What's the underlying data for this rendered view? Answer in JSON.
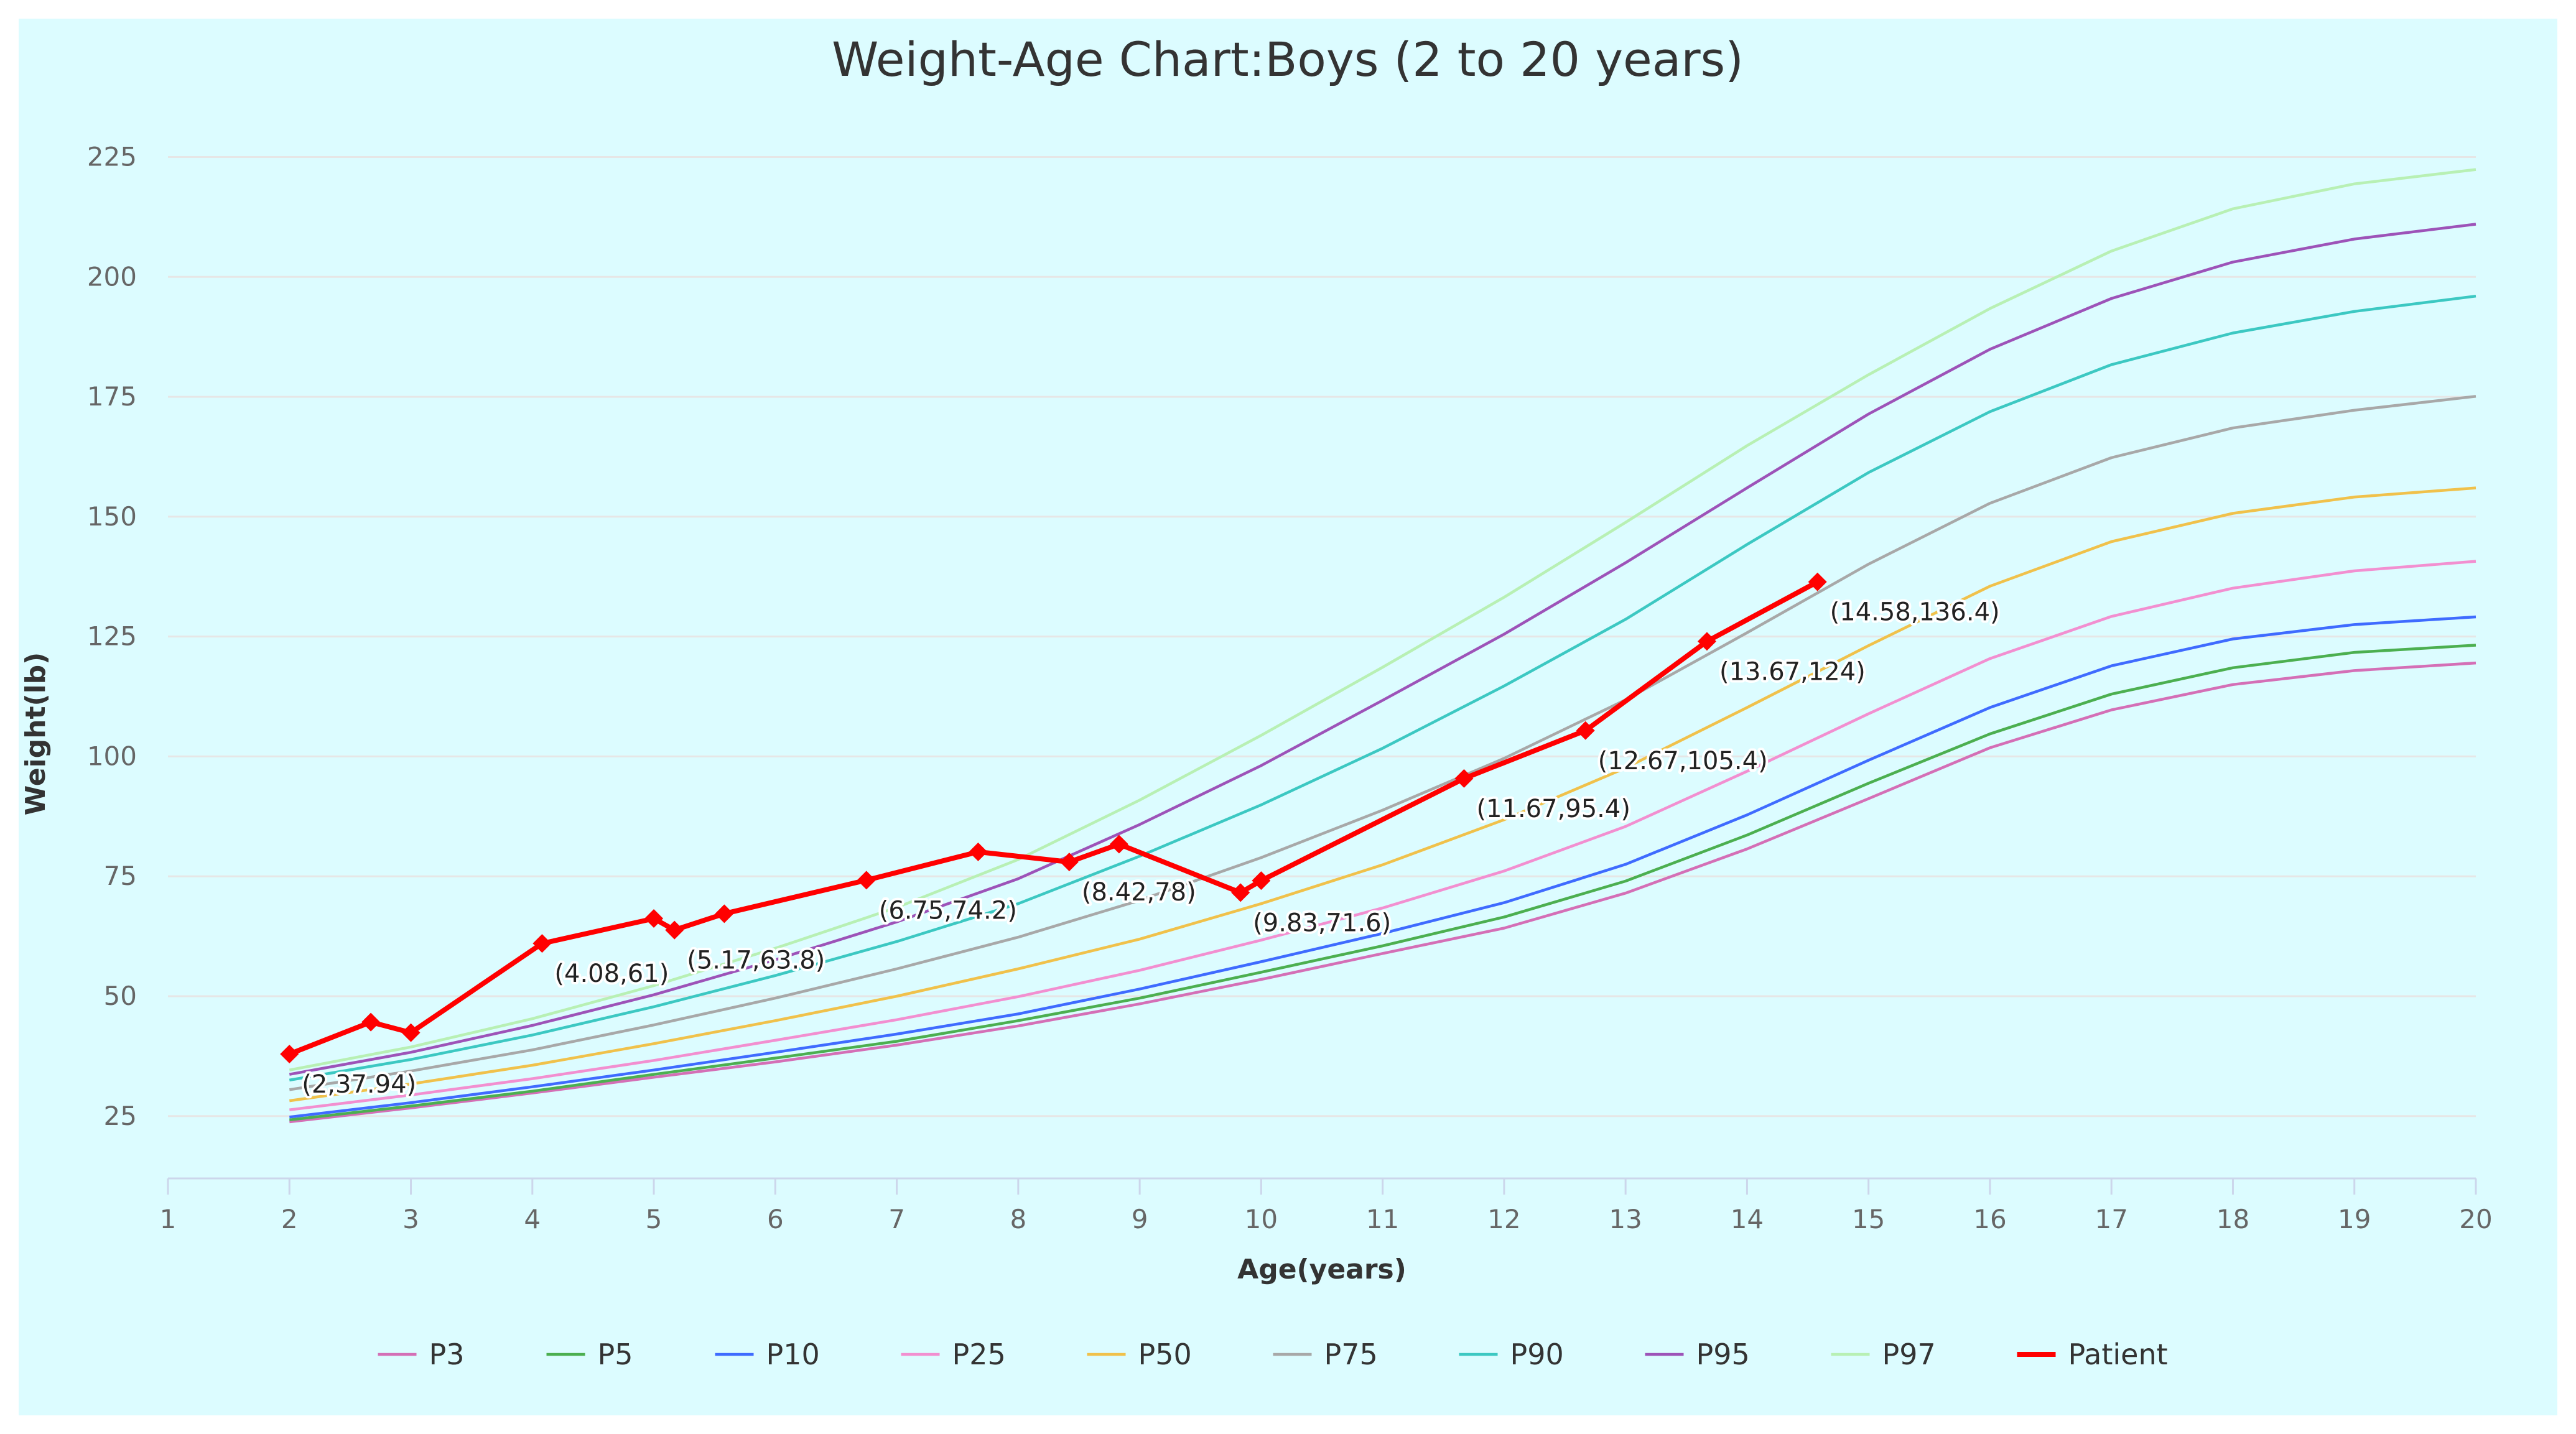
{
  "chart_data": {
    "type": "line",
    "title": "Weight-Age Chart:Boys (2 to 20 years)",
    "xlabel": "Age(years)",
    "ylabel": "Weight(lb)",
    "xlim": [
      1,
      20
    ],
    "ylim": [
      12,
      237
    ],
    "x_ticks": [
      1,
      2,
      3,
      4,
      5,
      6,
      7,
      8,
      9,
      10,
      11,
      12,
      13,
      14,
      15,
      16,
      17,
      18,
      19,
      20
    ],
    "y_ticks": [
      25,
      50,
      75,
      100,
      125,
      150,
      175,
      200,
      225
    ],
    "grid": "horizontal",
    "legend_position": "bottom",
    "x": [
      2,
      3,
      4,
      5,
      6,
      7,
      8,
      9,
      10,
      11,
      12,
      13,
      14,
      15,
      16,
      17,
      18,
      19,
      20
    ],
    "series": [
      {
        "name": "P3",
        "color": "#d46fb6",
        "values": [
          23.8,
          26.7,
          29.8,
          33.1,
          36.3,
          39.8,
          43.8,
          48.4,
          53.5,
          58.9,
          64.2,
          71.5,
          80.7,
          91.2,
          101.8,
          109.7,
          115.0,
          117.9,
          119.5
        ]
      },
      {
        "name": "P5",
        "color": "#4caf50",
        "values": [
          24.2,
          27.1,
          30.2,
          33.7,
          37.1,
          40.6,
          44.9,
          49.6,
          55.0,
          60.5,
          66.5,
          74.0,
          83.6,
          94.4,
          104.7,
          113.0,
          118.5,
          121.7,
          123.2
        ]
      },
      {
        "name": "P10",
        "color": "#3f6bff",
        "values": [
          24.8,
          27.8,
          31.1,
          34.6,
          38.3,
          42.1,
          46.3,
          51.5,
          57.2,
          63.1,
          69.5,
          77.5,
          87.8,
          99.2,
          110.2,
          118.9,
          124.5,
          127.5,
          129.1
        ]
      },
      {
        "name": "P25",
        "color": "#f28fd0",
        "values": [
          26.3,
          29.4,
          32.8,
          36.6,
          40.8,
          45.1,
          49.9,
          55.4,
          61.7,
          68.4,
          76.1,
          85.4,
          96.9,
          108.9,
          120.4,
          129.2,
          135.1,
          138.7,
          140.7
        ]
      },
      {
        "name": "P50",
        "color": "#f0c14b",
        "values": [
          28.2,
          31.7,
          35.6,
          40.1,
          44.9,
          50.0,
          55.7,
          61.9,
          69.3,
          77.4,
          86.8,
          97.6,
          110.2,
          123.1,
          135.5,
          144.8,
          150.7,
          154.1,
          156.0
        ]
      },
      {
        "name": "P75",
        "color": "#a8a8a8",
        "values": [
          30.5,
          34.4,
          38.8,
          44.0,
          49.6,
          55.7,
          62.3,
          70.0,
          78.9,
          88.8,
          99.6,
          111.8,
          125.8,
          140.1,
          152.8,
          162.3,
          168.5,
          172.2,
          175.1
        ]
      },
      {
        "name": "P90",
        "color": "#3cc8c2",
        "values": [
          32.5,
          36.8,
          41.9,
          47.8,
          54.3,
          61.4,
          69.3,
          79.2,
          89.9,
          101.7,
          114.7,
          128.6,
          144.2,
          159.2,
          171.9,
          181.7,
          188.3,
          192.8,
          196.0
        ]
      },
      {
        "name": "P95",
        "color": "#9d53b8",
        "values": [
          33.7,
          38.3,
          43.9,
          50.3,
          57.6,
          65.5,
          74.5,
          85.8,
          98.1,
          111.7,
          125.5,
          140.4,
          156.0,
          171.4,
          184.9,
          195.5,
          203.1,
          207.9,
          211.0
        ]
      },
      {
        "name": "P97",
        "color": "#b8f0b4",
        "values": [
          34.6,
          39.4,
          45.3,
          52.2,
          60.0,
          68.5,
          78.5,
          90.9,
          104.4,
          118.6,
          133.2,
          148.8,
          164.8,
          179.6,
          193.4,
          205.4,
          214.2,
          219.4,
          222.4
        ]
      }
    ],
    "patient": {
      "name": "Patient",
      "color": "#ff0000",
      "x": [
        2,
        2.67,
        3,
        4.08,
        5,
        5.17,
        5.58,
        6.75,
        7.67,
        8.42,
        8.83,
        9.83,
        10,
        11.67,
        12.67,
        13.67,
        14.58
      ],
      "y": [
        37.94,
        44.6,
        42.4,
        61,
        66.2,
        63.8,
        67.2,
        74.2,
        80.1,
        78,
        81.7,
        71.6,
        74.1,
        95.4,
        105.4,
        124,
        136.4
      ]
    },
    "annotations": [
      {
        "x": 2,
        "y": 37.94,
        "text": "(2,37.94)"
      },
      {
        "x": 4.08,
        "y": 61,
        "text": "(4.08,61)"
      },
      {
        "x": 5.17,
        "y": 63.8,
        "text": "(5.17,63.8)"
      },
      {
        "x": 6.75,
        "y": 74.2,
        "text": "(6.75,74.2)"
      },
      {
        "x": 8.42,
        "y": 78,
        "text": "(8.42,78)"
      },
      {
        "x": 9.83,
        "y": 71.6,
        "text": "(9.83,71.6)"
      },
      {
        "x": 11.67,
        "y": 95.4,
        "text": "(11.67,95.4)"
      },
      {
        "x": 12.67,
        "y": 105.4,
        "text": "(12.67,105.4)"
      },
      {
        "x": 13.67,
        "y": 124,
        "text": "(13.67,124)"
      },
      {
        "x": 14.58,
        "y": 136.4,
        "text": "(14.58,136.4)"
      }
    ]
  }
}
